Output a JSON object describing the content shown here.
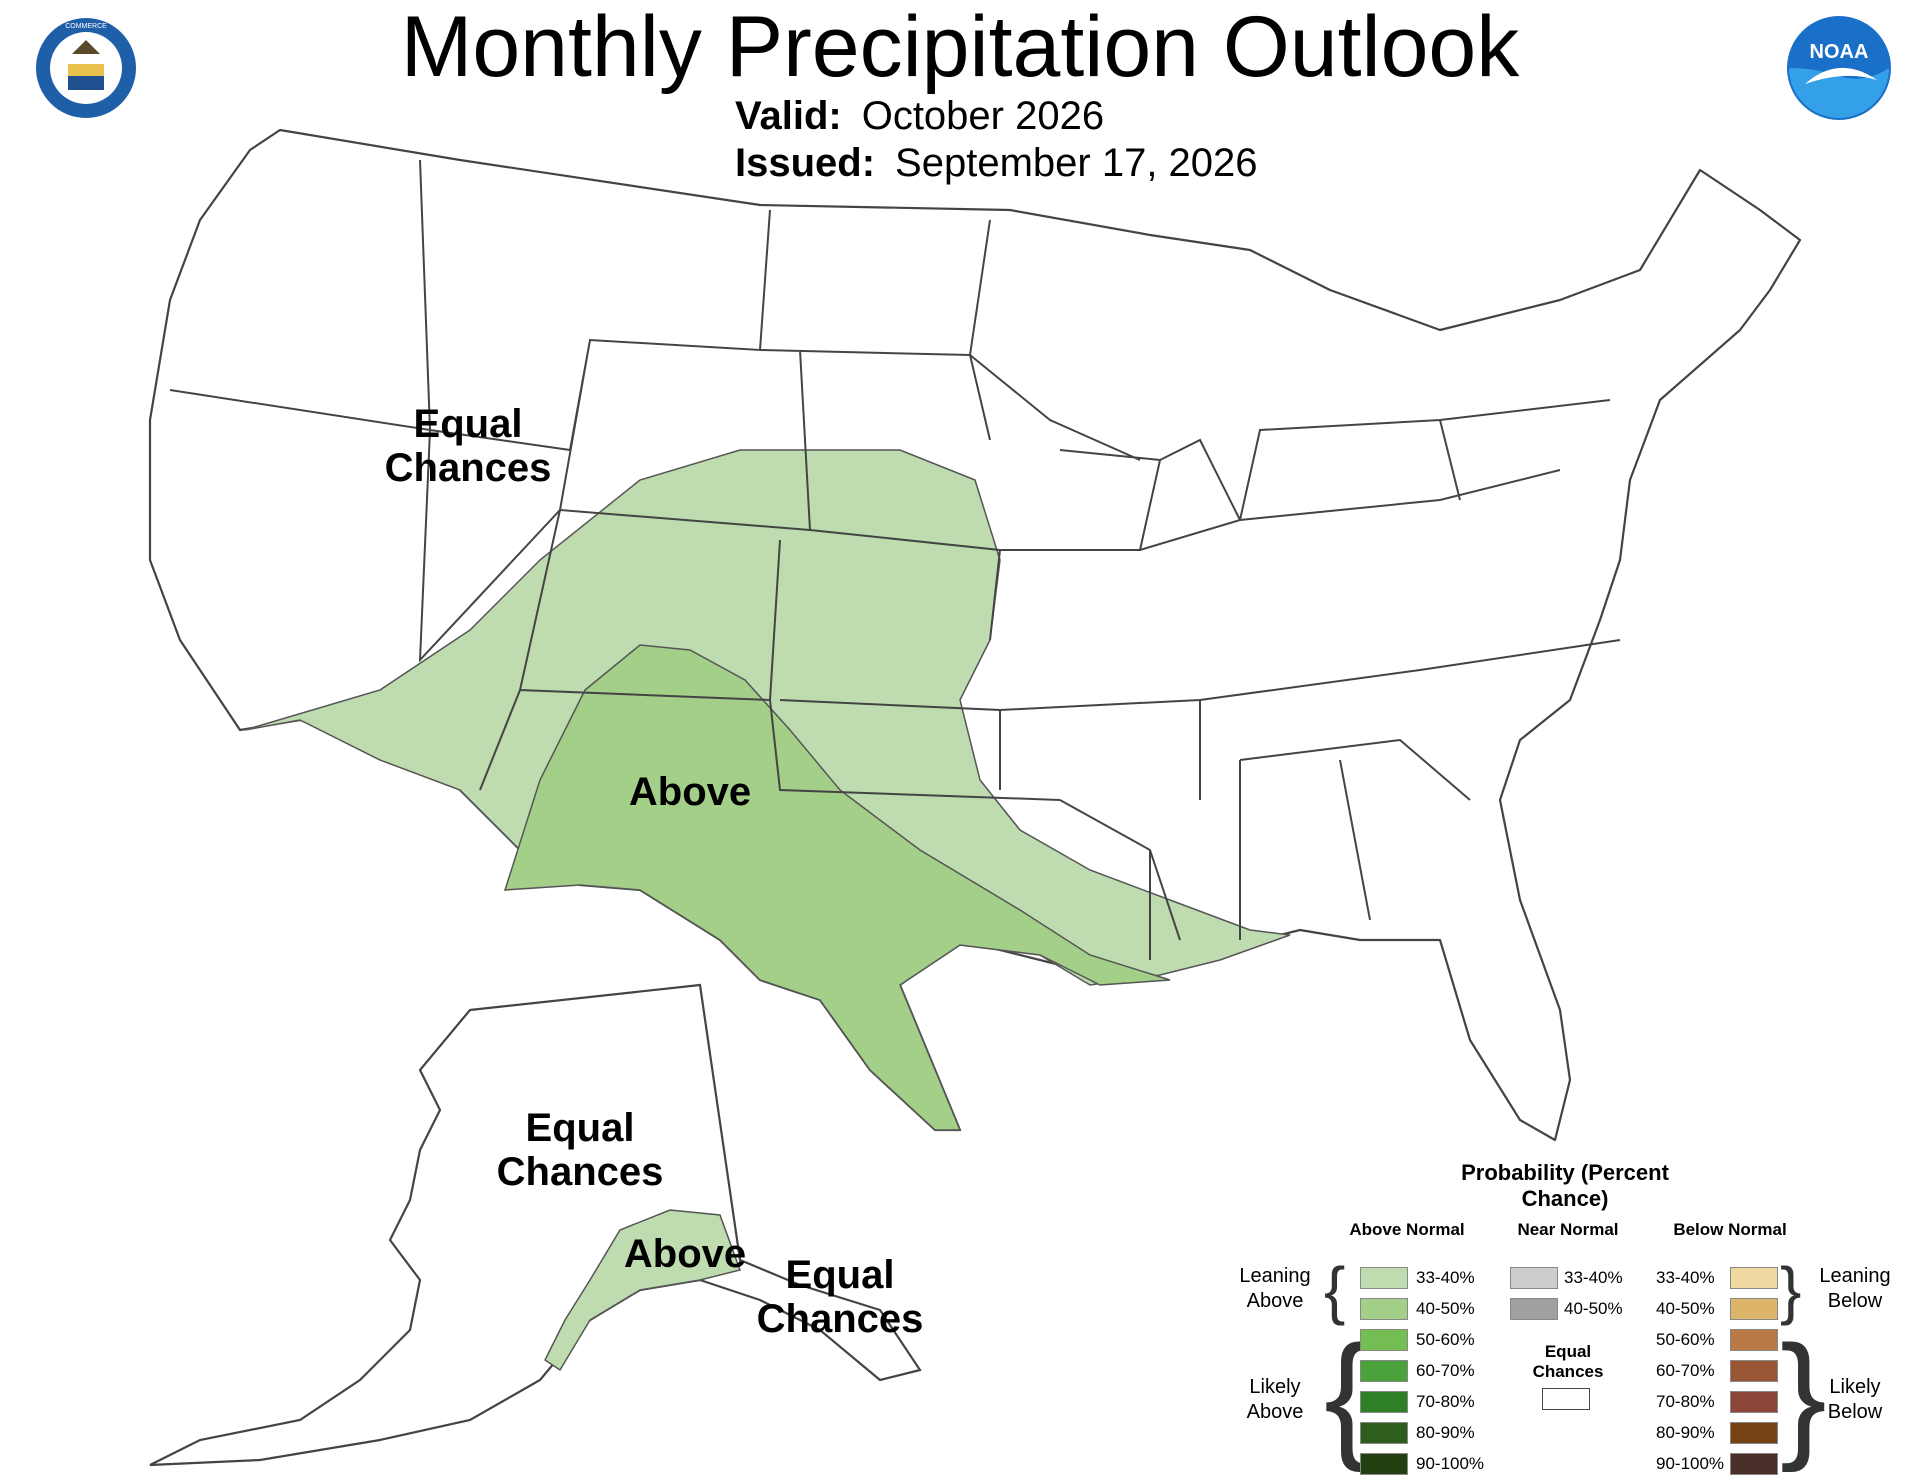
{
  "header": {
    "title": "Monthly Precipitation Outlook",
    "valid_label": "Valid:",
    "valid_value": "October 2026",
    "issued_label": "Issued:",
    "issued_value": "September 17, 2026"
  },
  "logos": {
    "left": "department-of-commerce-seal",
    "left_text": "DEPARTMENT OF COMMERCE · UNITED STATES OF AMERICA",
    "right": "noaa-logo",
    "right_text": "NOAA"
  },
  "regions": {
    "conus_equal": "Equal Chances",
    "conus_above": "Above",
    "alaska_equal": "Equal Chances",
    "alaska_above": "Above",
    "alaska_se_equal": "Equal Chances"
  },
  "colors": {
    "above_33_40": "#bfdcb0",
    "above_40_50": "#a3cf89",
    "above_50_60": "#74bd52",
    "above_60_70": "#4aa23a",
    "above_70_80": "#2e7f26",
    "above_80_90": "#2d5e1e",
    "above_90_100": "#224012",
    "near_33_40": "#cccccc",
    "near_40_50": "#a0a0a0",
    "below_33_40": "#f0d9a0",
    "below_40_50": "#dcb56a",
    "below_50_60": "#b97a46",
    "below_60_70": "#9a5535",
    "below_70_80": "#8c4536",
    "below_80_90": "#754214",
    "below_90_100": "#4a2e2a",
    "state_line": "#444444"
  },
  "legend": {
    "title": "Probability (Percent Chance)",
    "col_above": "Above Normal",
    "col_near": "Near Normal",
    "col_below": "Below Normal",
    "leaning_above": "Leaning Above",
    "likely_above": "Likely Above",
    "leaning_below": "Leaning Below",
    "likely_below": "Likely Below",
    "equal_chances": "Equal Chances",
    "above": [
      "33-40%",
      "40-50%",
      "50-60%",
      "60-70%",
      "70-80%",
      "80-90%",
      "90-100%"
    ],
    "near": [
      "33-40%",
      "40-50%"
    ],
    "below": [
      "33-40%",
      "40-50%",
      "50-60%",
      "60-70%",
      "70-80%",
      "80-90%",
      "90-100%"
    ]
  }
}
